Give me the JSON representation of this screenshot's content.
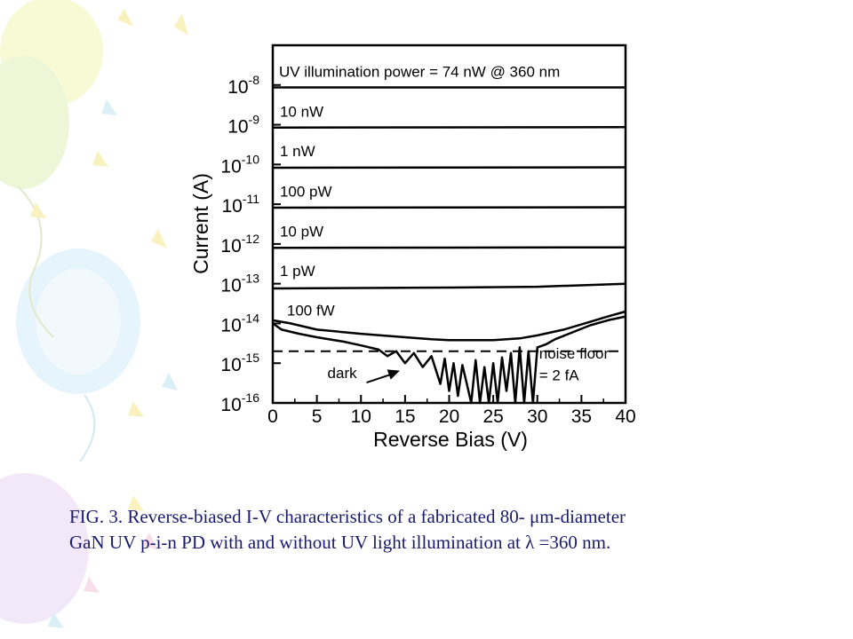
{
  "chart_data": {
    "type": "line",
    "title": "",
    "xlabel": "Reverse Bias (V)",
    "ylabel": "Current (A)",
    "xlim": [
      0,
      40
    ],
    "ylim": [
      1e-16,
      1e-07
    ],
    "yscale": "log",
    "grid": false,
    "legend": "none",
    "x_ticks": [
      0,
      5,
      10,
      15,
      20,
      25,
      30,
      35,
      40
    ],
    "y_ticks": [
      {
        "base": "10",
        "exp": "-8"
      },
      {
        "base": "10",
        "exp": "-9"
      },
      {
        "base": "10",
        "exp": "-10"
      },
      {
        "base": "10",
        "exp": "-11"
      },
      {
        "base": "10",
        "exp": "-12"
      },
      {
        "base": "10",
        "exp": "-13"
      },
      {
        "base": "10",
        "exp": "-14"
      },
      {
        "base": "10",
        "exp": "-15"
      },
      {
        "base": "10",
        "exp": "-16"
      }
    ],
    "series": [
      {
        "name": "UV illumination power = 74 nW @ 360 nm",
        "x": [
          0,
          40
        ],
        "y": [
          8.7e-09,
          8.7e-09
        ]
      },
      {
        "name": "10 nW",
        "x": [
          0,
          40
        ],
        "y": [
          8.5e-10,
          8.7e-10
        ]
      },
      {
        "name": "1 nW",
        "x": [
          0,
          40
        ],
        "y": [
          8.3e-11,
          8.5e-11
        ]
      },
      {
        "name": "100 pW",
        "x": [
          0,
          40
        ],
        "y": [
          8.2e-12,
          8.4e-12
        ]
      },
      {
        "name": "10 pW",
        "x": [
          0,
          40
        ],
        "y": [
          8e-13,
          8.2e-13
        ]
      },
      {
        "name": "1 pW",
        "x": [
          0,
          10,
          20,
          30,
          40
        ],
        "y": [
          7.6e-14,
          7.8e-14,
          8e-14,
          8.4e-14,
          1e-13
        ]
      },
      {
        "name": "100 fW",
        "x": [
          0,
          2,
          5,
          10,
          15,
          18,
          20,
          25,
          28,
          30,
          33,
          36,
          38,
          40
        ],
        "y": [
          1.2e-14,
          1e-14,
          7e-15,
          5.5e-15,
          4.5e-15,
          4e-15,
          3.8e-15,
          3.8e-15,
          4.2e-15,
          5e-15,
          7e-15,
          1.1e-14,
          1.5e-14,
          2e-14
        ]
      },
      {
        "name": "dark",
        "x": [
          0,
          1,
          3,
          5,
          8,
          10,
          12,
          13,
          14,
          15,
          16,
          17,
          18,
          19,
          19.5,
          20,
          20.5,
          21,
          21.5,
          22,
          22.5,
          23,
          23.5,
          24,
          24.5,
          25,
          25.5,
          26,
          26.5,
          27,
          27.5,
          28,
          28.5,
          29,
          29.5,
          30,
          31,
          32,
          34,
          36,
          38,
          40
        ],
        "y": [
          1e-14,
          7e-15,
          5.5e-15,
          4.5e-15,
          3.5e-15,
          2.8e-15,
          2.2e-15,
          1.5e-15,
          2e-15,
          1e-15,
          1.8e-15,
          8e-16,
          1.5e-15,
          3e-16,
          1.3e-15,
          2e-16,
          1e-15,
          1.5e-16,
          9e-16,
          3e-16,
          1e-16,
          1.2e-15,
          1e-16,
          8e-16,
          1e-16,
          1e-15,
          1e-16,
          1.4e-15,
          2e-16,
          1.8e-15,
          1e-16,
          2.5e-15,
          1e-16,
          2e-15,
          1e-16,
          2.5e-15,
          3e-15,
          4e-15,
          6e-15,
          9e-15,
          1.2e-14,
          1.5e-14
        ]
      }
    ],
    "series_labels": [
      {
        "text": "UV illumination power = 74 nW @ 360 nm",
        "x": 0.7,
        "y": 1.6e-08
      },
      {
        "text": "10 nW",
        "x": 0.8,
        "y": 1.6e-09
      },
      {
        "text": "1 nW",
        "x": 0.8,
        "y": 1.6e-10
      },
      {
        "text": "100 pW",
        "x": 0.8,
        "y": 1.55e-11
      },
      {
        "text": "10 pW",
        "x": 0.8,
        "y": 1.55e-12
      },
      {
        "text": "1 pW",
        "x": 0.8,
        "y": 1.55e-13
      },
      {
        "text": "100 fW",
        "x": 1.6,
        "y": 1.6e-14
      }
    ],
    "noise_floor": {
      "y": 2e-15,
      "label_line1": "noise floor",
      "label_line2": "= 2 fA",
      "label_x": 30.2,
      "label_y1": 1.3e-15,
      "label_y2": 3.7e-16
    },
    "dark_annotation": {
      "text": "dark",
      "text_x": 6.2,
      "text_y": 4.2e-16,
      "arrow_to_x": 14.4,
      "arrow_to_y": 6.5e-16
    },
    "colors": {
      "line": "#000000",
      "caption": "#1a1a6e"
    }
  },
  "caption": {
    "line1": "FIG. 3. Reverse-biased I-V characteristics of a fabricated 80- μm-diameter",
    "line2": "GaN UV p-i-n PD with and without UV light illumination at λ =360 nm."
  }
}
